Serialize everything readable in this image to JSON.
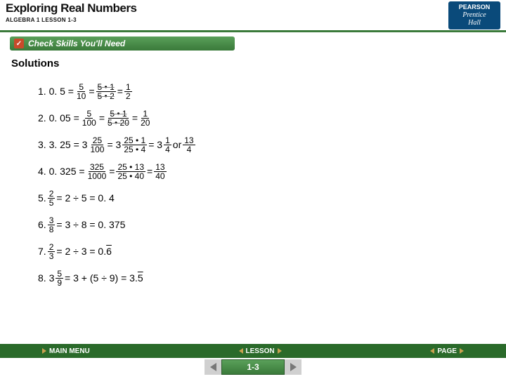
{
  "header": {
    "title": "Exploring Real Numbers",
    "subtitle": "ALGEBRA 1  LESSON 1-3",
    "logo_top": "PEARSON",
    "logo_mid": "Prentice",
    "logo_bot": "Hall"
  },
  "banner": {
    "check_mark": "✓",
    "text": "Check Skills You'll Need"
  },
  "solutions_heading": "Solutions",
  "lines": {
    "l1_lead": "1. 0. 5 =",
    "l1_f1n": "5",
    "l1_f1d": "10",
    "l1_eq1": "=",
    "l1_f2n": "5 • 1",
    "l1_f2d": "5 • 2",
    "l1_eq2": "=",
    "l1_f3n": "1",
    "l1_f3d": "2",
    "l2_lead": "2. 0. 05 =",
    "l2_f1n": "5",
    "l2_f1d": "100",
    "l2_eq1": "=",
    "l2_f2n": "5 • 1",
    "l2_f2d": "5 • 20",
    "l2_eq2": "=",
    "l2_f3n": "1",
    "l2_f3d": "20",
    "l3_lead": "3. 3. 25 = 3",
    "l3_f1n": "25",
    "l3_f1d": "100",
    "l3_eq1": "= 3",
    "l3_f2n": "25 • 1",
    "l3_f2d": "25 • 4",
    "l3_eq2": "= 3",
    "l3_f3n": "1",
    "l3_f3d": "4",
    "l3_or": " or ",
    "l3_f4n": "13",
    "l3_f4d": "4",
    "l4_lead": "4. 0. 325 =",
    "l4_f1n": "325",
    "l4_f1d": "1000",
    "l4_eq1": "=",
    "l4_f2n": "25 • 13",
    "l4_f2d": "25 • 40",
    "l4_eq2": "=",
    "l4_f3n": "13",
    "l4_f3d": "40",
    "l5_lead": "5. ",
    "l5_fn": "2",
    "l5_fd": "5",
    "l5_rest": " = 2 ÷ 5 = 0. 4",
    "l6_lead": "6. ",
    "l6_fn": "3",
    "l6_fd": "8",
    "l6_rest": " = 3 ÷ 8 = 0. 375",
    "l7_lead": "7. ",
    "l7_fn": "2",
    "l7_fd": "3",
    "l7_rest1": " = 2 ÷ 3 = 0.",
    "l7_bar": "6",
    "l8_lead": "8. 3",
    "l8_fn": "5",
    "l8_fd": "9",
    "l8_rest1": " = 3 + (5 ÷ 9) = 3.",
    "l8_bar": "5"
  },
  "nav": {
    "main_menu": "MAIN MENU",
    "lesson": "LESSON",
    "page": "PAGE",
    "page_num": "1-3"
  },
  "colors": {
    "green_dark": "#2a6a2a",
    "green_mid": "#3a7a3a",
    "green_light": "#5aa05a",
    "orange": "#c94a2a",
    "gold": "#c9a050",
    "blue": "#0a4a7a"
  }
}
